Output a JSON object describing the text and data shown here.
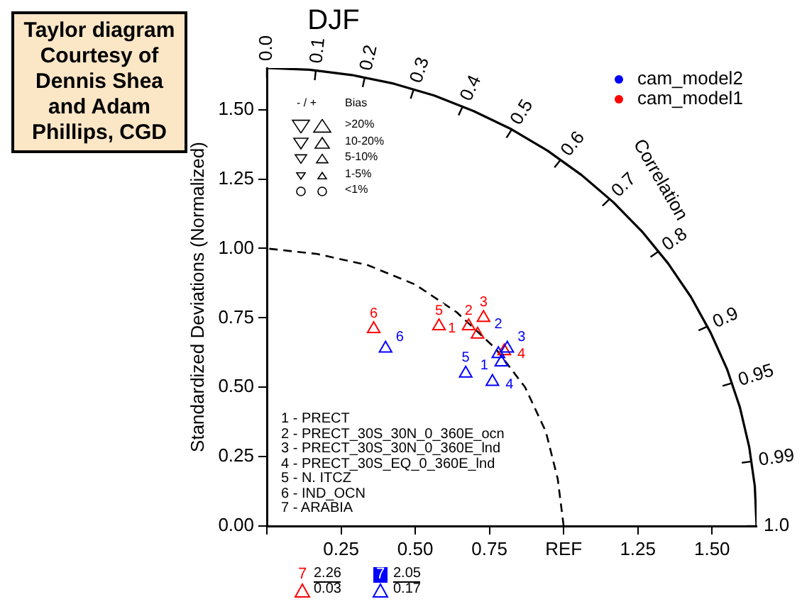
{
  "chart_data": {
    "type": "scatter",
    "title": "DJF",
    "ylabel": "Standardized Deviations (Normalized)",
    "xlim": [
      0,
      1.65
    ],
    "ylim": [
      0,
      1.65
    ],
    "xticks": [
      {
        "value": 0,
        "label": null
      },
      0.25,
      {
        "value": 0.5,
        "label": "0.50"
      },
      0.75,
      {
        "value": 1,
        "label": "REF"
      },
      1.25,
      {
        "value": 1.5,
        "label": "1.50"
      }
    ],
    "yticks": [
      {
        "value": 0,
        "label": "0.00"
      },
      0.25,
      {
        "value": 0.5,
        "label": "0.50"
      },
      0.75,
      {
        "value": 1,
        "label": "1.00"
      },
      1.25,
      {
        "value": 1.5,
        "label": "1.50"
      }
    ],
    "marker": "triangle",
    "legend": "top right",
    "series": [
      {
        "name": "cam_model2",
        "color": "#0000ff",
        "x": [
          0.79,
          0.78,
          0.81,
          0.76,
          0.67,
          0.4
        ],
        "values": [
          0.59,
          0.62,
          0.64,
          0.52,
          0.55,
          0.64
        ]
      },
      {
        "name": "cam_model1",
        "color": "#ff0000",
        "x": [
          0.71,
          0.68,
          0.73,
          0.8,
          0.58,
          0.36
        ],
        "values": [
          0.69,
          0.72,
          0.75,
          0.63,
          0.72,
          0.71
        ]
      },
      {
        "type": "line",
        "marker": "none",
        "line_style": "dashed",
        "color": "#000000",
        "x": [
          1,
          0.98,
          0.94,
          0.87,
          0.77,
          0.64,
          0.5,
          0.34,
          0.17,
          0
        ],
        "values": [
          0,
          0.17,
          0.34,
          0.5,
          0.64,
          0.77,
          0.87,
          0.94,
          0.98,
          1
        ]
      },
      {
        "type": "line",
        "marker": "none",
        "line_style": "solid",
        "color": "#000000",
        "x": [
          1.65,
          1.644,
          1.625,
          1.594,
          1.551,
          1.495,
          1.429,
          1.352,
          1.264,
          1.167,
          1.061,
          0.946,
          0.825,
          0.697,
          0.564,
          0.427,
          0.286,
          0.144,
          0
        ],
        "values": [
          0,
          0.144,
          0.286,
          0.427,
          0.564,
          0.697,
          0.825,
          0.946,
          1.061,
          1.167,
          1.264,
          1.352,
          1.429,
          1.495,
          1.551,
          1.594,
          1.625,
          1.644,
          1.65
        ]
      }
    ],
    "annotations": [
      "Taylor diagram Courtesy of Dennis Shea and Adam Phillips, CGD",
      "1 - PRECT",
      "2 - PRECT_30S_30N_0_360E_ocn",
      "3 - PRECT_30S_30N_0_360E_lnd",
      "4 - PRECT_30S_EQ_0_360E_lnd",
      "5 - N. ITCZ",
      "6 - IND_OCN",
      "7 - ARABIA",
      "- / +",
      "Bias",
      ">20%",
      "10-20%",
      "5-10%",
      "1-5%",
      "<1%",
      "7",
      "2.26",
      "0.03",
      "7",
      "2.05",
      "0.17",
      "0.0",
      "0.1",
      "0.2",
      "0.3",
      "0.4",
      "0.5",
      "0.6",
      "0.7",
      "0.8",
      "0.9",
      "0.95",
      "0.99",
      "1.0",
      "Correlation",
      {
        "text": "1",
        "x": 0.79,
        "y": 0.59
      },
      {
        "text": "2",
        "x": 0.78,
        "y": 0.62
      },
      {
        "text": "3",
        "x": 0.81,
        "y": 0.64
      },
      {
        "text": "4",
        "x": 0.76,
        "y": 0.52
      },
      {
        "text": "5",
        "x": 0.67,
        "y": 0.55
      },
      {
        "text": "6",
        "x": 0.4,
        "y": 0.64
      },
      {
        "text": "1",
        "x": 0.71,
        "y": 0.69
      },
      {
        "text": "2",
        "x": 0.68,
        "y": 0.72
      },
      {
        "text": "3",
        "x": 0.73,
        "y": 0.75
      },
      {
        "text": "4",
        "x": 0.8,
        "y": 0.63
      },
      {
        "text": "5",
        "x": 0.58,
        "y": 0.72
      },
      {
        "text": "6",
        "x": 0.36,
        "y": 0.71
      }
    ]
  }
}
